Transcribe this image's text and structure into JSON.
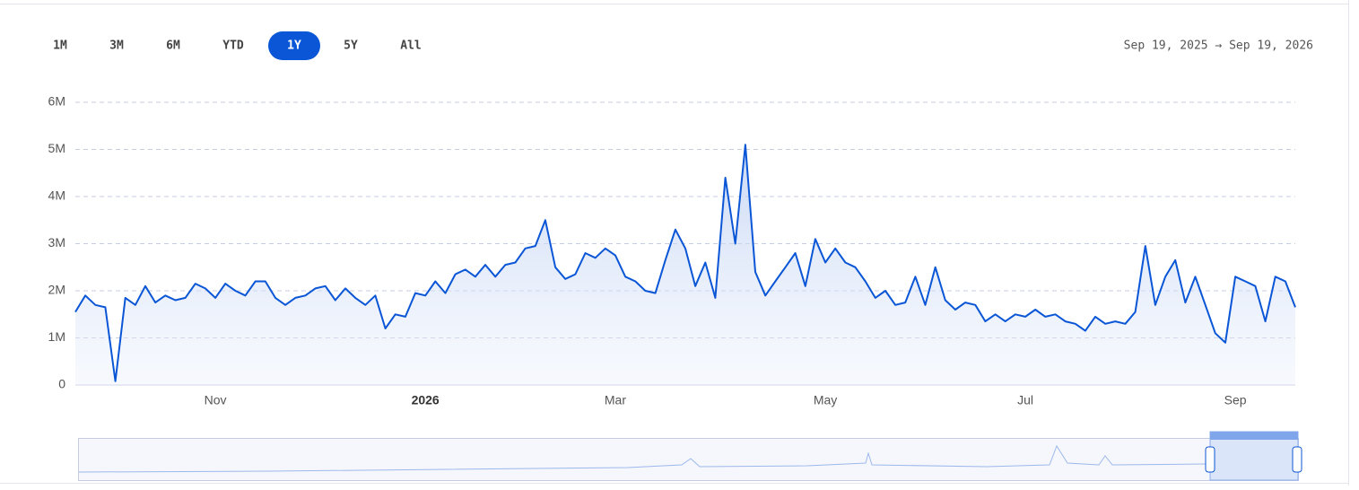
{
  "toolbar": {
    "buttons": [
      "1M",
      "3M",
      "6M",
      "YTD",
      "1Y",
      "5Y",
      "All"
    ],
    "selected": "1Y",
    "date_range": "Sep 19, 2025 → Sep 19, 2026"
  },
  "chart_data": {
    "type": "area",
    "color": "#0a56d6",
    "categories": [
      null,
      null,
      null,
      null,
      null,
      null,
      null,
      null,
      null,
      null,
      null,
      null,
      null,
      null,
      "Nov",
      null,
      null,
      null,
      null,
      null,
      null,
      null,
      null,
      null,
      null,
      null,
      null,
      null,
      null,
      null,
      null,
      null,
      null,
      null,
      null,
      "2026",
      null,
      null,
      null,
      null,
      null,
      null,
      null,
      null,
      null,
      null,
      null,
      null,
      null,
      null,
      null,
      null,
      null,
      null,
      "Mar",
      null,
      null,
      null,
      null,
      null,
      null,
      null,
      null,
      null,
      null,
      null,
      null,
      null,
      null,
      null,
      null,
      null,
      null,
      null,
      null,
      "May",
      null,
      null,
      null,
      null,
      null,
      null,
      null,
      null,
      null,
      null,
      null,
      null,
      null,
      null,
      null,
      null,
      null,
      null,
      null,
      "Jul",
      null,
      null,
      null,
      null,
      null,
      null,
      null,
      null,
      null,
      null,
      null,
      null,
      null,
      null,
      null,
      null,
      null,
      null,
      null,
      null,
      "Sep",
      null,
      null,
      null,
      null,
      null,
      null
    ],
    "values": [
      1550000,
      1900000,
      1700000,
      1650000,
      80000,
      1850000,
      1700000,
      2100000,
      1750000,
      1900000,
      1800000,
      1850000,
      2150000,
      2050000,
      1850000,
      2150000,
      2000000,
      1900000,
      2200000,
      2200000,
      1850000,
      1700000,
      1850000,
      1900000,
      2050000,
      2100000,
      1800000,
      2050000,
      1850000,
      1700000,
      1900000,
      1200000,
      1500000,
      1450000,
      1950000,
      1900000,
      2200000,
      1950000,
      2350000,
      2450000,
      2300000,
      2550000,
      2300000,
      2550000,
      2600000,
      2900000,
      2950000,
      3500000,
      2500000,
      2250000,
      2350000,
      2800000,
      2700000,
      2900000,
      2750000,
      2300000,
      2200000,
      2000000,
      1950000,
      2650000,
      3300000,
      2900000,
      2100000,
      2600000,
      1850000,
      4400000,
      3000000,
      5100000,
      2400000,
      1900000,
      2200000,
      2500000,
      2800000,
      2100000,
      3100000,
      2600000,
      2900000,
      2600000,
      2500000,
      2200000,
      1850000,
      2000000,
      1700000,
      1750000,
      2300000,
      1700000,
      2500000,
      1800000,
      1600000,
      1750000,
      1700000,
      1350000,
      1500000,
      1350000,
      1500000,
      1450000,
      1600000,
      1450000,
      1500000,
      1350000,
      1300000,
      1150000,
      1450000,
      1300000,
      1350000,
      1300000,
      1550000,
      2950000,
      1700000,
      2300000,
      2650000,
      1750000,
      2300000,
      1700000,
      1100000,
      900000,
      2300000,
      2200000,
      2100000,
      1350000,
      2300000,
      2200000,
      1650000
    ],
    "ylim": [
      0,
      6000000
    ],
    "yticks": [
      {
        "value": 0,
        "label": "0"
      },
      {
        "value": 1000000,
        "label": "1M"
      },
      {
        "value": 2000000,
        "label": "2M"
      },
      {
        "value": 3000000,
        "label": "3M"
      },
      {
        "value": 4000000,
        "label": "4M"
      },
      {
        "value": 5000000,
        "label": "5M"
      },
      {
        "value": 6000000,
        "label": "6M"
      }
    ],
    "grid": true
  }
}
